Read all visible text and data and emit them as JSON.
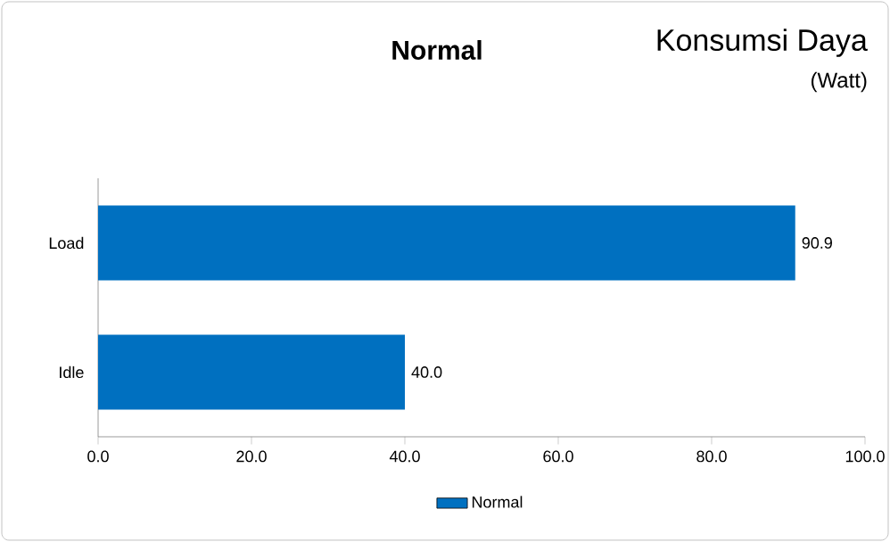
{
  "chart_data": {
    "type": "bar",
    "orientation": "horizontal",
    "title": "Normal",
    "subtitle": "Konsumsi Daya",
    "annotations": [
      "(Watt)"
    ],
    "categories": [
      "Load",
      "Idle"
    ],
    "series": [
      {
        "name": "Normal",
        "color": "#0070c0",
        "values": [
          90.9,
          40.0
        ],
        "value_labels": [
          "90.9",
          "40.0"
        ]
      }
    ],
    "xlim": [
      0,
      100
    ],
    "xticks": [
      {
        "value": 0,
        "label": "0.0"
      },
      {
        "value": 20,
        "label": "20.0"
      },
      {
        "value": 40,
        "label": "40.0"
      },
      {
        "value": 60,
        "label": "60.0"
      },
      {
        "value": 80,
        "label": "80.0"
      },
      {
        "value": 100,
        "label": "100.0"
      }
    ],
    "grid": false,
    "legend": "bottom"
  }
}
